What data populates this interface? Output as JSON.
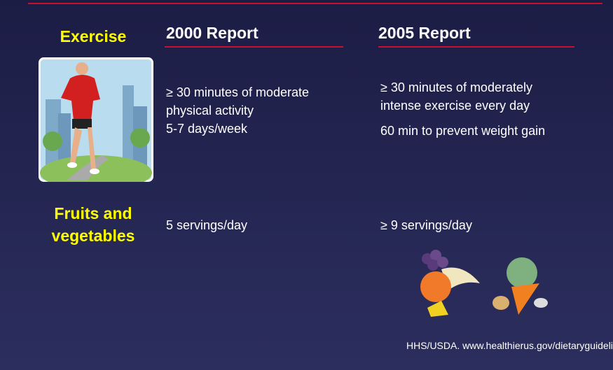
{
  "columns": [
    "2000 Report",
    "2005 Report"
  ],
  "rows": [
    {
      "label": [
        "Exercise"
      ],
      "cells": [
        [
          "≥ 30 minutes of moderate",
          "physical activity",
          "5-7 days/week"
        ],
        [
          "≥ 30 minutes of moderately",
          "intense exercise every day",
          "60 min to prevent weight gain"
        ]
      ]
    },
    {
      "label": [
        "Fruits and",
        "vegetables"
      ],
      "cells": [
        [
          "5 servings/day"
        ],
        [
          "≥ 9 servings/day"
        ]
      ]
    }
  ],
  "source": "HHS/USDA. www.healthierus.gov/dietaryguidelines."
}
